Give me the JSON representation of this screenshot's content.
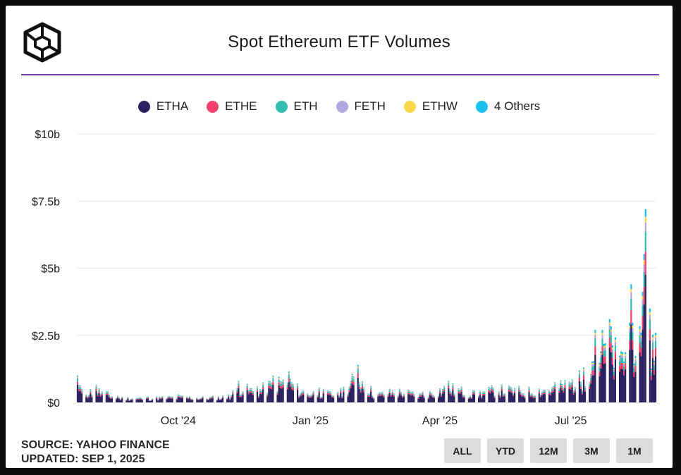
{
  "chart_data": {
    "type": "bar",
    "stacked": true,
    "title": "Spot Ethereum ETF Volumes",
    "xlabel": "",
    "ylabel": "",
    "x_range": [
      "2024-07-23",
      "2025-08-29"
    ],
    "ylim": [
      0,
      10
    ],
    "y_unit": "billions USD",
    "y_ticks": [
      {
        "value": 0,
        "label": "$0"
      },
      {
        "value": 2.5,
        "label": "$2.5b"
      },
      {
        "value": 5,
        "label": "$5b"
      },
      {
        "value": 7.5,
        "label": "$7.5b"
      },
      {
        "value": 10,
        "label": "$10b"
      }
    ],
    "x_ticks": [
      {
        "value": "2024-10-01",
        "label": "Oct '24"
      },
      {
        "value": "2025-01-01",
        "label": "Jan '25"
      },
      {
        "value": "2025-04-01",
        "label": "Apr '25"
      },
      {
        "value": "2025-07-01",
        "label": "Jul '25"
      }
    ],
    "grid": true,
    "legend_position": "top-center",
    "series": [
      {
        "name": "ETHA",
        "color": "#2a2360",
        "share": 0.66
      },
      {
        "name": "ETHE",
        "color": "#f2426b",
        "share": 0.12
      },
      {
        "name": "ETH",
        "color": "#34bdb0",
        "share": 0.1
      },
      {
        "name": "FETH",
        "color": "#b3a8e0",
        "share": 0.05
      },
      {
        "name": "ETHW",
        "color": "#f8d84a",
        "share": 0.03
      },
      {
        "name": "4 Others",
        "color": "#1cc0ef",
        "share": 0.04
      }
    ],
    "total_volume_points": [
      {
        "x": "2024-07-23",
        "y": 1.0
      },
      {
        "x": "2024-07-26",
        "y": 0.5
      },
      {
        "x": "2024-08-05",
        "y": 0.65
      },
      {
        "x": "2024-08-20",
        "y": 0.25
      },
      {
        "x": "2024-09-10",
        "y": 0.22
      },
      {
        "x": "2024-10-01",
        "y": 0.3
      },
      {
        "x": "2024-10-20",
        "y": 0.25
      },
      {
        "x": "2024-11-05",
        "y": 0.3
      },
      {
        "x": "2024-11-12",
        "y": 0.8
      },
      {
        "x": "2024-11-25",
        "y": 0.6
      },
      {
        "x": "2024-12-06",
        "y": 1.0
      },
      {
        "x": "2024-12-17",
        "y": 1.15
      },
      {
        "x": "2024-12-27",
        "y": 0.45
      },
      {
        "x": "2025-01-07",
        "y": 0.55
      },
      {
        "x": "2025-01-20",
        "y": 0.4
      },
      {
        "x": "2025-02-03",
        "y": 1.4
      },
      {
        "x": "2025-02-15",
        "y": 0.4
      },
      {
        "x": "2025-03-01",
        "y": 0.6
      },
      {
        "x": "2025-03-20",
        "y": 0.4
      },
      {
        "x": "2025-04-07",
        "y": 0.8
      },
      {
        "x": "2025-04-25",
        "y": 0.45
      },
      {
        "x": "2025-05-10",
        "y": 0.7
      },
      {
        "x": "2025-06-01",
        "y": 0.6
      },
      {
        "x": "2025-06-20",
        "y": 0.75
      },
      {
        "x": "2025-07-10",
        "y": 1.3
      },
      {
        "x": "2025-07-18",
        "y": 2.7
      },
      {
        "x": "2025-07-28",
        "y": 3.1
      },
      {
        "x": "2025-08-05",
        "y": 1.9
      },
      {
        "x": "2025-08-12",
        "y": 4.4
      },
      {
        "x": "2025-08-19",
        "y": 2.6
      },
      {
        "x": "2025-08-22",
        "y": 7.2
      },
      {
        "x": "2025-08-25",
        "y": 3.5
      },
      {
        "x": "2025-08-29",
        "y": 2.6
      }
    ]
  },
  "footer": {
    "source": "SOURCE: YAHOO FINANCE",
    "updated": "UPDATED: SEP 1, 2025"
  },
  "range_buttons": [
    "ALL",
    "YTD",
    "12M",
    "3M",
    "1M"
  ]
}
